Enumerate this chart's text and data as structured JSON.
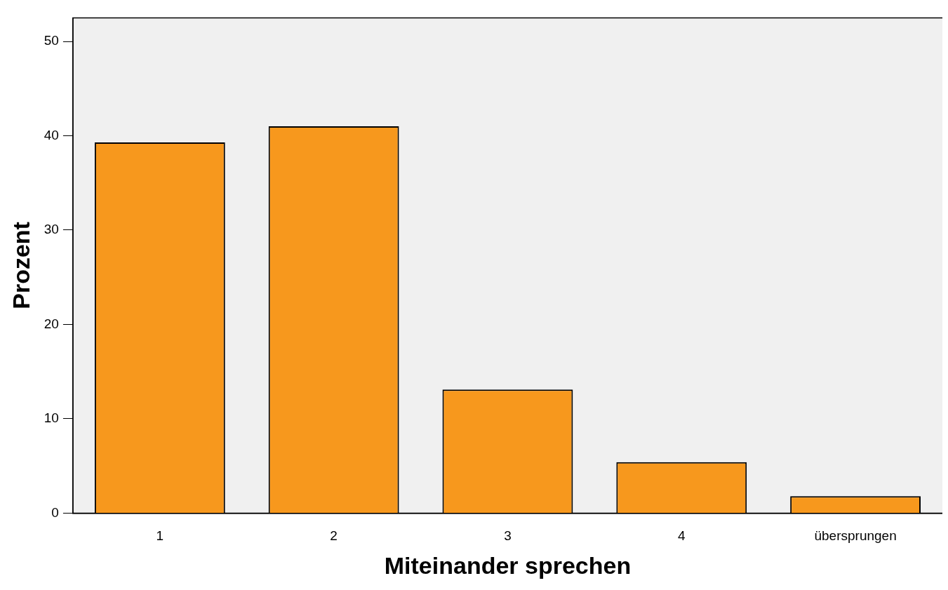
{
  "chart_data": {
    "type": "bar",
    "xlabel": "Miteinander sprechen",
    "ylabel": "Prozent",
    "categories": [
      "1",
      "2",
      "3",
      "4",
      "übersprungen"
    ],
    "values": [
      39.3,
      41.0,
      13.1,
      5.4,
      1.8
    ],
    "color": "#f7981d",
    "ylim": [
      0,
      52.5
    ],
    "yticks": [
      0,
      10,
      20,
      30,
      40,
      50
    ],
    "grid": false,
    "legend": false
  }
}
